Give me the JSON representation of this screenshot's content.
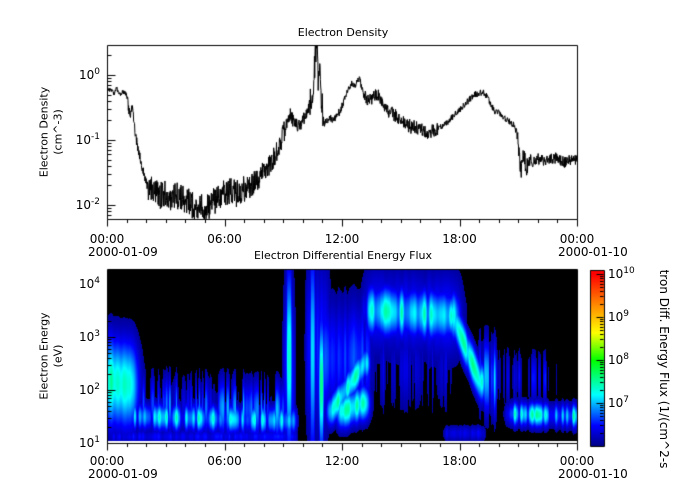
{
  "figure": {
    "background": "#ffffff",
    "title_top": "Electron Density",
    "title_bottom": "Electron Differential Energy Flux"
  },
  "density_panel": {
    "ylabel_line1": "Electron Density",
    "ylabel_line2": "(cm^-3)",
    "ytick_labels": [
      "10^0",
      "10^-1",
      "10^-2"
    ]
  },
  "energy_panel": {
    "ylabel_line1": "Electron Energy",
    "ylabel_line2": "(eV)",
    "ytick_labels": [
      "10^4",
      "10^3",
      "10^2",
      "10^1"
    ]
  },
  "time_axis": {
    "tick_labels": [
      "00:00",
      "06:00",
      "12:00",
      "18:00",
      "00:00"
    ],
    "date_left": "2000-01-09",
    "date_right": "2000-01-10"
  },
  "colorbar": {
    "tick_labels": [
      "10^10",
      "10^9",
      "10^8",
      "10^7"
    ],
    "title_visible": "tron Diff. Energy Flux (1/(cm^2-s",
    "color_top": "#ff0000",
    "color_yellow": "#ffff00",
    "color_green": "#00ff00",
    "color_cyan": "#00ffff",
    "color_blue": "#0000ff",
    "color_bottom": "#000082"
  },
  "chart_data": [
    {
      "type": "line",
      "title": "Electron Density",
      "ylabel": "Electron Density (cm^-3)",
      "x_unit": "hours from 2000-01-09 00:00 to 2000-01-10 00:00",
      "xlim_hours": [
        0,
        24
      ],
      "xtick_labels": [
        "00:00",
        "06:00",
        "12:00",
        "18:00",
        "00:00"
      ],
      "ytick_values": [
        1,
        0.1,
        0.01
      ],
      "ylim_log10": [
        -2.22,
        0.46
      ],
      "line_color": "#000000",
      "keyframes": [
        [
          0,
          0.62
        ],
        [
          0.2,
          0.58
        ],
        [
          0.35,
          0.52
        ],
        [
          0.5,
          0.62
        ],
        [
          0.65,
          0.5
        ],
        [
          0.8,
          0.55
        ],
        [
          0.95,
          0.52
        ],
        [
          1.05,
          0.45
        ],
        [
          1.1,
          0.3
        ],
        [
          1.2,
          0.26
        ],
        [
          1.3,
          0.32
        ],
        [
          1.45,
          0.12
        ],
        [
          1.6,
          0.07
        ],
        [
          1.75,
          0.045
        ],
        [
          1.9,
          0.028
        ],
        [
          2.1,
          0.018
        ],
        [
          2.4,
          0.016
        ],
        [
          2.7,
          0.014
        ],
        [
          3.0,
          0.015
        ],
        [
          3.3,
          0.013
        ],
        [
          3.6,
          0.014
        ],
        [
          3.9,
          0.012
        ],
        [
          4.2,
          0.011
        ],
        [
          4.5,
          0.009
        ],
        [
          4.8,
          0.01
        ],
        [
          5.1,
          0.009
        ],
        [
          5.4,
          0.011
        ],
        [
          5.7,
          0.013
        ],
        [
          6.0,
          0.015
        ],
        [
          6.3,
          0.016
        ],
        [
          6.6,
          0.015
        ],
        [
          6.9,
          0.017
        ],
        [
          7.2,
          0.019
        ],
        [
          7.5,
          0.022
        ],
        [
          7.8,
          0.028
        ],
        [
          8.1,
          0.035
        ],
        [
          8.4,
          0.045
        ],
        [
          8.7,
          0.07
        ],
        [
          9.0,
          0.12
        ],
        [
          9.2,
          0.2
        ],
        [
          9.35,
          0.25
        ],
        [
          9.5,
          0.2
        ],
        [
          9.7,
          0.17
        ],
        [
          9.85,
          0.16
        ],
        [
          10.0,
          0.2
        ],
        [
          10.15,
          0.24
        ],
        [
          10.3,
          0.3
        ],
        [
          10.45,
          0.45
        ],
        [
          10.55,
          0.8
        ],
        [
          10.65,
          2.2
        ],
        [
          10.72,
          2.8
        ],
        [
          10.78,
          0.8
        ],
        [
          10.85,
          1.6
        ],
        [
          10.92,
          0.6
        ],
        [
          11.0,
          0.3
        ],
        [
          11.08,
          0.17
        ],
        [
          11.2,
          0.2
        ],
        [
          11.35,
          0.22
        ],
        [
          11.5,
          0.2
        ],
        [
          11.7,
          0.23
        ],
        [
          11.9,
          0.28
        ],
        [
          12.1,
          0.4
        ],
        [
          12.3,
          0.6
        ],
        [
          12.5,
          0.75
        ],
        [
          12.65,
          0.68
        ],
        [
          12.8,
          0.8
        ],
        [
          12.9,
          0.9
        ],
        [
          13.0,
          0.65
        ],
        [
          13.15,
          0.5
        ],
        [
          13.3,
          0.4
        ],
        [
          13.5,
          0.42
        ],
        [
          13.7,
          0.5
        ],
        [
          13.9,
          0.48
        ],
        [
          14.1,
          0.36
        ],
        [
          14.3,
          0.3
        ],
        [
          14.6,
          0.25
        ],
        [
          14.9,
          0.21
        ],
        [
          15.2,
          0.18
        ],
        [
          15.5,
          0.16
        ],
        [
          15.8,
          0.16
        ],
        [
          16.1,
          0.14
        ],
        [
          16.4,
          0.13
        ],
        [
          16.7,
          0.14
        ],
        [
          17.0,
          0.16
        ],
        [
          17.3,
          0.18
        ],
        [
          17.6,
          0.22
        ],
        [
          17.9,
          0.27
        ],
        [
          18.2,
          0.33
        ],
        [
          18.5,
          0.42
        ],
        [
          18.75,
          0.5
        ],
        [
          19.0,
          0.52
        ],
        [
          19.2,
          0.55
        ],
        [
          19.35,
          0.48
        ],
        [
          19.5,
          0.42
        ],
        [
          19.65,
          0.33
        ],
        [
          19.8,
          0.28
        ],
        [
          20.0,
          0.26
        ],
        [
          20.2,
          0.23
        ],
        [
          20.5,
          0.2
        ],
        [
          20.8,
          0.17
        ],
        [
          20.95,
          0.12
        ],
        [
          21.05,
          0.05
        ],
        [
          21.15,
          0.03
        ],
        [
          21.25,
          0.055
        ],
        [
          21.4,
          0.04
        ],
        [
          21.6,
          0.05
        ],
        [
          21.8,
          0.045
        ],
        [
          22.0,
          0.052
        ],
        [
          22.3,
          0.046
        ],
        [
          22.6,
          0.05
        ],
        [
          23.0,
          0.055
        ],
        [
          23.3,
          0.045
        ],
        [
          23.6,
          0.05
        ],
        [
          24,
          0.048
        ]
      ],
      "noise_dex": [
        [
          0,
          1.05,
          0.035
        ],
        [
          1.05,
          2.1,
          0.07
        ],
        [
          2.1,
          7.8,
          0.21
        ],
        [
          7.8,
          9.1,
          0.16
        ],
        [
          9.1,
          10.35,
          0.1
        ],
        [
          10.35,
          11.05,
          0.22
        ],
        [
          11.05,
          12.1,
          0.06
        ],
        [
          12.1,
          13.1,
          0.045
        ],
        [
          13.1,
          14.2,
          0.09
        ],
        [
          14.2,
          16.9,
          0.11
        ],
        [
          16.9,
          20.9,
          0.05
        ],
        [
          20.9,
          21.5,
          0.16
        ],
        [
          21.5,
          24,
          0.09
        ]
      ]
    },
    {
      "type": "heatmap",
      "title": "Electron Differential Energy Flux",
      "ylabel": "Electron Energy (eV)",
      "zlabel_visible": "tron Diff. Energy Flux (1/(cm^2-s",
      "xlim_hours": [
        0,
        24
      ],
      "ylim_log10_eV": [
        1,
        4.28
      ],
      "zlim_log10_flux": [
        6,
        10
      ],
      "ztick_labels": [
        "10^10",
        "10^9",
        "10^8",
        "10^7"
      ],
      "background": "#000000",
      "features": [
        {
          "id": "midnight-blob",
          "t0": -0.3,
          "t1": 0.9,
          "soft": 0.45,
          "le0": 2.2,
          "le1": 2.1,
          "sle": 0.55,
          "peak": 7.5,
          "patch": 0.15,
          "pfreq": 6
        },
        {
          "id": "midnight-blob-high",
          "t0": -0.2,
          "t1": 0.5,
          "soft": 0.35,
          "le0": 2.6,
          "le1": 2.4,
          "sle": 0.35,
          "peak": 6.9,
          "patch": 0.1,
          "pfreq": 6
        },
        {
          "id": "morning-low-band",
          "t0": 1.4,
          "t1": 9.3,
          "soft": 0.25,
          "le0": 1.5,
          "le1": 1.42,
          "sle": 0.17,
          "peak": 7.05,
          "patch": 0.5,
          "pfreq": 8
        },
        {
          "id": "morning-wisps",
          "t0": 1.8,
          "t1": 8.9,
          "soft": 0.1,
          "le0": 1.75,
          "le1": 1.6,
          "sle": 0.35,
          "peak": 6.6,
          "patch": 0.95,
          "pfreq": 12
        },
        {
          "id": "bottom-strip",
          "t0": 0.3,
          "t1": 9.4,
          "soft": 0.2,
          "le0": 1.12,
          "le1": 1.12,
          "sle": 0.09,
          "peak": 6.45,
          "patch": 0.3,
          "pfreq": 10
        },
        {
          "id": "streak-0915",
          "t0": 9.2,
          "t1": 9.3,
          "soft": 0.07,
          "le0": 2.6,
          "le1": 2.6,
          "sle": 1.15,
          "peak": 7.35,
          "patch": 0,
          "pfreq": 1
        },
        {
          "id": "streak-0915-halo",
          "t0": 9.1,
          "t1": 9.4,
          "soft": 0.12,
          "le0": 2.2,
          "le1": 2.2,
          "sle": 1.3,
          "peak": 6.5,
          "patch": 0,
          "pfreq": 1
        },
        {
          "id": "streak-1030",
          "t0": 10.4,
          "t1": 10.5,
          "soft": 0.06,
          "le0": 2.7,
          "le1": 2.7,
          "sle": 1.3,
          "peak": 7.1,
          "patch": 0,
          "pfreq": 1
        },
        {
          "id": "streak-1055",
          "t0": 10.85,
          "t1": 10.95,
          "soft": 0.05,
          "le0": 2.1,
          "le1": 2.1,
          "sle": 0.8,
          "peak": 7.55,
          "patch": 0,
          "pfreq": 1
        },
        {
          "id": "streak-halo-1040",
          "t0": 10.3,
          "t1": 11.15,
          "soft": 0.15,
          "le0": 2.8,
          "le1": 2.8,
          "sle": 1.1,
          "peak": 6.55,
          "patch": 0.2,
          "pfreq": 10
        },
        {
          "id": "midday-haze",
          "t0": 11.0,
          "t1": 13.1,
          "soft": 0.3,
          "le0": 2.6,
          "le1": 2.6,
          "sle": 0.7,
          "peak": 6.6,
          "patch": 0.3,
          "pfreq": 9
        },
        {
          "id": "midday-rising-band",
          "t0": 11.4,
          "t1": 13.1,
          "soft": 0.2,
          "le0": 1.6,
          "le1": 2.5,
          "sle": 0.2,
          "peak": 7.3,
          "patch": 0.25,
          "pfreq": 8
        },
        {
          "id": "midday-low-bright",
          "t0": 12.0,
          "t1": 13.0,
          "soft": 0.25,
          "le0": 1.6,
          "le1": 1.75,
          "sle": 0.22,
          "peak": 7.45,
          "patch": 0.2,
          "pfreq": 7
        },
        {
          "id": "afternoon-high-band",
          "t0": 13.5,
          "t1": 17.6,
          "soft": 0.3,
          "le0": 3.5,
          "le1": 3.4,
          "sle": 0.3,
          "peak": 7.2,
          "patch": 0.35,
          "pfreq": 6
        },
        {
          "id": "afternoon-high-halo",
          "t0": 13.4,
          "t1": 17.7,
          "soft": 0.35,
          "le0": 3.5,
          "le1": 3.4,
          "sle": 0.55,
          "peak": 6.5,
          "patch": 0.2,
          "pfreq": 5
        },
        {
          "id": "afternoon-specks",
          "t0": 13.6,
          "t1": 17.3,
          "soft": 0.2,
          "le0": 2.4,
          "le1": 2.4,
          "sle": 0.5,
          "peak": 6.25,
          "patch": 0.9,
          "pfreq": 14
        },
        {
          "id": "evening-descent",
          "t0": 17.6,
          "t1": 19.0,
          "soft": 0.2,
          "le0": 3.4,
          "le1": 2.15,
          "sle": 0.24,
          "peak": 7.4,
          "patch": 0.2,
          "pfreq": 8
        },
        {
          "id": "evening-wisps",
          "t0": 19.0,
          "t1": 19.7,
          "soft": 0.12,
          "le0": 2.3,
          "le1": 2.2,
          "sle": 0.45,
          "peak": 6.8,
          "patch": 0.7,
          "pfreq": 12
        },
        {
          "id": "late-specks",
          "t0": 19.8,
          "t1": 20.7,
          "soft": 0.1,
          "le0": 2.3,
          "le1": 2.2,
          "sle": 0.35,
          "peak": 6.3,
          "patch": 0.9,
          "pfreq": 13
        },
        {
          "id": "night-low-band",
          "t0": 20.7,
          "t1": 24.3,
          "soft": 0.25,
          "le0": 1.55,
          "le1": 1.5,
          "sle": 0.15,
          "peak": 7.15,
          "patch": 0.5,
          "pfreq": 9
        },
        {
          "id": "night-specks",
          "t0": 20.9,
          "t1": 22.7,
          "soft": 0.15,
          "le0": 2.25,
          "le1": 2.2,
          "sle": 0.3,
          "peak": 6.35,
          "patch": 0.85,
          "pfreq": 12
        },
        {
          "id": "evening-bottom-strip",
          "t0": 17.4,
          "t1": 19.0,
          "soft": 0.2,
          "le0": 1.18,
          "le1": 1.18,
          "sle": 0.1,
          "peak": 6.4,
          "patch": 0.3,
          "pfreq": 10
        }
      ]
    }
  ]
}
